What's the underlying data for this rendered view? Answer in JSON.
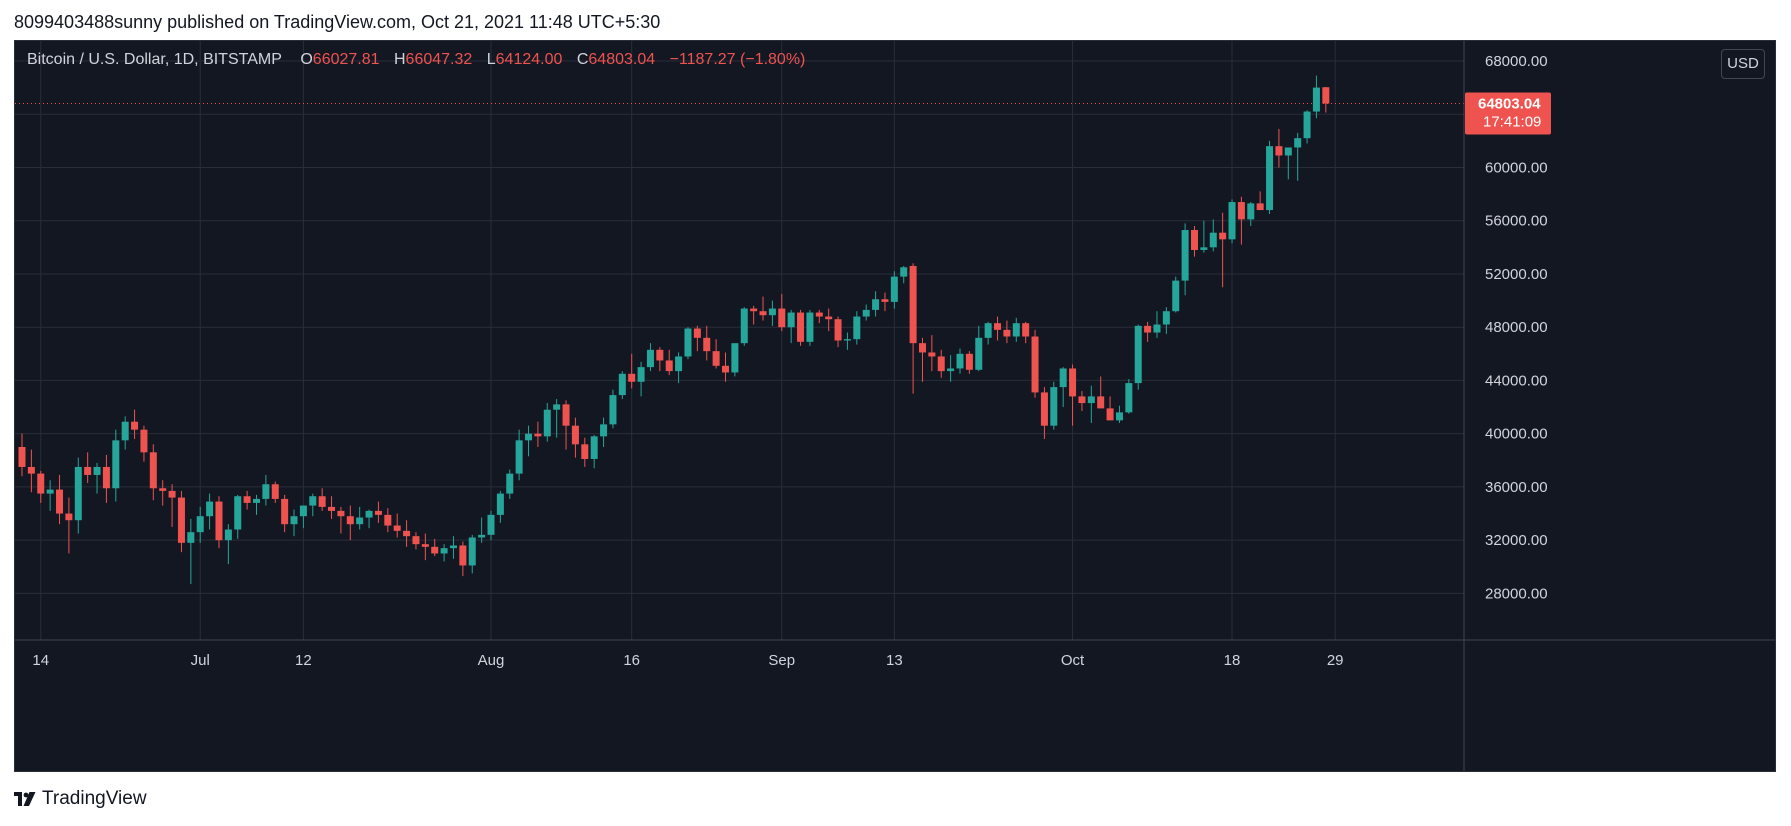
{
  "publish_line": "8099403488sunny published on TradingView.com, Oct 21, 2021 11:48 UTC+5:30",
  "brand": "TradingView",
  "legend": {
    "symbol": "Bitcoin / U.S. Dollar, 1D, BITSTAMP",
    "o_label": "O",
    "o_value": "66027.81",
    "h_label": "H",
    "h_value": "66047.32",
    "l_label": "L",
    "l_value": "64124.00",
    "c_label": "C",
    "c_value": "64803.04",
    "change": "−1187.27 (−1.80%)"
  },
  "currency": "USD",
  "colors": {
    "background": "#131722",
    "up": "#26a69a",
    "down": "#ef5350",
    "grid": "#2a2e39",
    "text": "#d1d4dc"
  },
  "chart_data": {
    "type": "candlestick",
    "title": "Bitcoin / U.S. Dollar, 1D, BITSTAMP",
    "ylim": [
      24500,
      69500
    ],
    "y_ticks": [
      "68000.00",
      "64000.00",
      "60000.00",
      "56000.00",
      "52000.00",
      "48000.00",
      "44000.00",
      "40000.00",
      "36000.00",
      "32000.00",
      "28000.00"
    ],
    "x_ticks": [
      "14",
      "Jul",
      "12",
      "Aug",
      "16",
      "Sep",
      "13",
      "Oct",
      "18",
      "29"
    ],
    "x_tick_days": [
      2,
      19,
      30,
      50,
      65,
      81,
      93,
      112,
      129,
      140
    ],
    "last_price": {
      "value": 64803.04,
      "label": "64803.04",
      "countdown": "17:41:09"
    },
    "candles": [
      [
        39000,
        40000,
        36800,
        37500
      ],
      [
        37500,
        38800,
        35600,
        37000
      ],
      [
        37000,
        37200,
        34800,
        35500
      ],
      [
        35500,
        36500,
        34200,
        35800
      ],
      [
        35800,
        36900,
        33200,
        34000
      ],
      [
        34000,
        35200,
        31000,
        33500
      ],
      [
        33500,
        38200,
        32500,
        37500
      ],
      [
        37500,
        38600,
        36300,
        36900
      ],
      [
        36900,
        37800,
        35500,
        37500
      ],
      [
        37500,
        38400,
        34800,
        35900
      ],
      [
        35900,
        40300,
        34900,
        39500
      ],
      [
        39500,
        41300,
        38800,
        40900
      ],
      [
        40900,
        41800,
        39600,
        40300
      ],
      [
        40300,
        40600,
        37900,
        38600
      ],
      [
        38600,
        39200,
        35000,
        35900
      ],
      [
        35900,
        36500,
        34600,
        35700
      ],
      [
        35700,
        36200,
        33000,
        35200
      ],
      [
        35200,
        35700,
        31100,
        31800
      ],
      [
        31800,
        33600,
        28700,
        32600
      ],
      [
        32600,
        34500,
        31800,
        33800
      ],
      [
        33800,
        35500,
        32800,
        34900
      ],
      [
        34900,
        35300,
        31400,
        32000
      ],
      [
        32000,
        33200,
        30200,
        32800
      ],
      [
        32800,
        35400,
        32100,
        35300
      ],
      [
        35300,
        35700,
        34300,
        34800
      ],
      [
        34800,
        35400,
        33900,
        35100
      ],
      [
        35100,
        36900,
        34600,
        36200
      ],
      [
        36200,
        36400,
        34800,
        35100
      ],
      [
        35100,
        35400,
        32600,
        33200
      ],
      [
        33200,
        34300,
        32300,
        33800
      ],
      [
        33800,
        34600,
        32900,
        34600
      ],
      [
        34600,
        35500,
        33800,
        35300
      ],
      [
        35300,
        35900,
        34200,
        34500
      ],
      [
        34500,
        35300,
        33600,
        34200
      ],
      [
        34200,
        34500,
        32500,
        33800
      ],
      [
        33800,
        34600,
        32000,
        33200
      ],
      [
        33200,
        34500,
        32800,
        33700
      ],
      [
        33700,
        34300,
        32900,
        34200
      ],
      [
        34200,
        34900,
        33300,
        33900
      ],
      [
        33900,
        34400,
        32600,
        33100
      ],
      [
        33100,
        34000,
        32200,
        32700
      ],
      [
        32700,
        33500,
        31500,
        32300
      ],
      [
        32300,
        32600,
        31300,
        31700
      ],
      [
        31700,
        32500,
        30500,
        31500
      ],
      [
        31500,
        32100,
        30800,
        31000
      ],
      [
        31000,
        31700,
        30400,
        31400
      ],
      [
        31400,
        32300,
        30600,
        31600
      ],
      [
        31600,
        31900,
        29300,
        30100
      ],
      [
        30100,
        32400,
        29500,
        32200
      ],
      [
        32200,
        33700,
        31800,
        32400
      ],
      [
        32400,
        34200,
        32000,
        33900
      ],
      [
        33900,
        35700,
        33300,
        35500
      ],
      [
        35500,
        37300,
        35100,
        37000
      ],
      [
        37000,
        40300,
        36500,
        39500
      ],
      [
        39500,
        40600,
        38300,
        40000
      ],
      [
        40000,
        40900,
        39000,
        39800
      ],
      [
        39800,
        42300,
        39400,
        41800
      ],
      [
        41800,
        42600,
        39700,
        42200
      ],
      [
        42200,
        42500,
        38800,
        40600
      ],
      [
        40600,
        41200,
        38200,
        39200
      ],
      [
        39200,
        39700,
        37500,
        38100
      ],
      [
        38100,
        39900,
        37400,
        39800
      ],
      [
        39800,
        41200,
        39000,
        40700
      ],
      [
        40700,
        43300,
        40400,
        42900
      ],
      [
        42900,
        44700,
        42600,
        44500
      ],
      [
        44500,
        46000,
        43400,
        43900
      ],
      [
        43900,
        45400,
        42800,
        45000
      ],
      [
        45000,
        46800,
        44700,
        46300
      ],
      [
        46300,
        46500,
        44700,
        45500
      ],
      [
        45500,
        46300,
        44400,
        44700
      ],
      [
        44700,
        46100,
        43800,
        45800
      ],
      [
        45800,
        48000,
        45600,
        47900
      ],
      [
        47900,
        48100,
        46200,
        47200
      ],
      [
        47200,
        48100,
        45500,
        46200
      ],
      [
        46200,
        47100,
        44900,
        45100
      ],
      [
        45100,
        46100,
        43900,
        44600
      ],
      [
        44600,
        46600,
        44300,
        46800
      ],
      [
        46800,
        49500,
        46600,
        49400
      ],
      [
        49400,
        49600,
        48200,
        49200
      ],
      [
        49200,
        50300,
        48500,
        48900
      ],
      [
        48900,
        50000,
        48100,
        49400
      ],
      [
        49400,
        50500,
        47700,
        48000
      ],
      [
        48000,
        49300,
        46800,
        49100
      ],
      [
        49100,
        49300,
        46600,
        46900
      ],
      [
        46900,
        49300,
        46600,
        49100
      ],
      [
        49100,
        49300,
        48300,
        48800
      ],
      [
        48800,
        49400,
        47700,
        48600
      ],
      [
        48600,
        48800,
        46500,
        47000
      ],
      [
        47000,
        47600,
        46300,
        47100
      ],
      [
        47100,
        49200,
        46700,
        48800
      ],
      [
        48800,
        49700,
        48500,
        49300
      ],
      [
        49300,
        50700,
        48800,
        50100
      ],
      [
        50100,
        50600,
        49200,
        49900
      ],
      [
        49900,
        52200,
        49400,
        51800
      ],
      [
        51800,
        52600,
        51300,
        52500
      ],
      [
        52600,
        52800,
        43000,
        46800
      ],
      [
        46800,
        47200,
        43900,
        46100
      ],
      [
        46100,
        47400,
        44700,
        45800
      ],
      [
        45800,
        46300,
        44200,
        44700
      ],
      [
        44700,
        45900,
        43900,
        44900
      ],
      [
        44900,
        46400,
        44500,
        46000
      ],
      [
        46000,
        46200,
        44500,
        44800
      ],
      [
        44800,
        48100,
        44700,
        47200
      ],
      [
        47200,
        48400,
        46700,
        48300
      ],
      [
        48300,
        48800,
        47000,
        47800
      ],
      [
        47800,
        48500,
        46800,
        47300
      ],
      [
        47300,
        48700,
        46900,
        48300
      ],
      [
        48300,
        48400,
        46800,
        47300
      ],
      [
        47300,
        47800,
        42700,
        43100
      ],
      [
        43100,
        43500,
        39600,
        40600
      ],
      [
        40600,
        43900,
        40300,
        43500
      ],
      [
        43500,
        45000,
        42000,
        44900
      ],
      [
        44900,
        45200,
        40600,
        42800
      ],
      [
        42800,
        43200,
        41700,
        42300
      ],
      [
        42300,
        43600,
        40800,
        42800
      ],
      [
        42800,
        44300,
        41900,
        41900
      ],
      [
        41900,
        42800,
        41000,
        41000
      ],
      [
        41000,
        42100,
        40800,
        41600
      ],
      [
        41600,
        44100,
        41500,
        43800
      ],
      [
        43800,
        48200,
        43300,
        48100
      ],
      [
        48100,
        48400,
        46900,
        47600
      ],
      [
        47600,
        49200,
        47200,
        48200
      ],
      [
        48200,
        49500,
        47500,
        49200
      ],
      [
        49200,
        51800,
        49100,
        51500
      ],
      [
        51500,
        55800,
        50400,
        55300
      ],
      [
        55300,
        55600,
        53300,
        53800
      ],
      [
        53800,
        56000,
        53600,
        54000
      ],
      [
        54000,
        56100,
        53700,
        55100
      ],
      [
        55100,
        56600,
        51000,
        54600
      ],
      [
        54600,
        57600,
        54300,
        57400
      ],
      [
        57400,
        57800,
        54200,
        56100
      ],
      [
        56100,
        57400,
        55600,
        57300
      ],
      [
        57300,
        58200,
        56800,
        56800
      ],
      [
        56800,
        62000,
        56500,
        61600
      ],
      [
        61600,
        62900,
        60000,
        60900
      ],
      [
        60900,
        61500,
        59100,
        61500
      ],
      [
        61500,
        62600,
        59000,
        62200
      ],
      [
        62200,
        64300,
        61800,
        64200
      ],
      [
        64200,
        66900,
        63700,
        66000
      ],
      [
        66027.81,
        66047.32,
        64124.0,
        64803.04
      ]
    ]
  }
}
